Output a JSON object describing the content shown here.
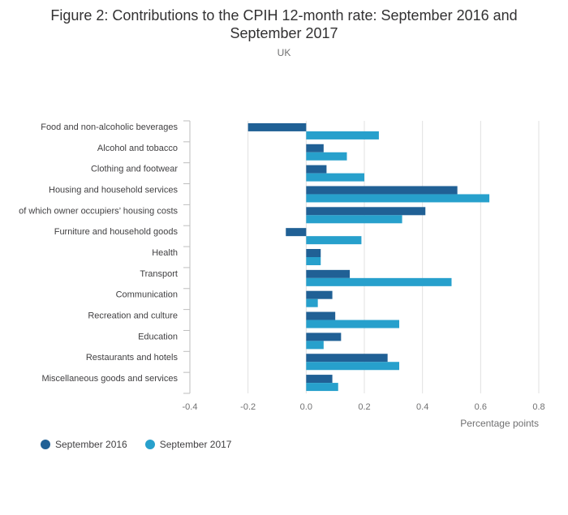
{
  "title": "Figure 2: Contributions to the CPIH 12-month rate: September 2016 and September 2017",
  "subtitle": "UK",
  "colors": {
    "series1": "#206095",
    "series2": "#27a0cc",
    "grid": "#e0e0e0",
    "axis": "#bebebe"
  },
  "chart_data": {
    "type": "bar",
    "orientation": "horizontal",
    "categories": [
      "Food and non-alcoholic beverages",
      "Alcohol and tobacco",
      "Clothing and footwear",
      "Housing and household services",
      "of which owner occupiers’ housing costs",
      "Furniture and household goods",
      "Health",
      "Transport",
      "Communication",
      "Recreation and culture",
      "Education",
      "Restaurants and hotels",
      "Miscellaneous goods and services"
    ],
    "series": [
      {
        "name": "September 2016",
        "values": [
          -0.2,
          0.06,
          0.07,
          0.52,
          0.41,
          -0.07,
          0.05,
          0.15,
          0.09,
          0.1,
          0.12,
          0.28,
          0.09
        ]
      },
      {
        "name": "September 2017",
        "values": [
          0.25,
          0.14,
          0.2,
          0.63,
          0.33,
          0.19,
          0.05,
          0.5,
          0.04,
          0.32,
          0.06,
          0.32,
          0.11
        ]
      }
    ],
    "xlim": [
      -0.4,
      0.8
    ],
    "xticks": [
      "-0.4",
      "-0.2",
      "0.0",
      "0.2",
      "0.4",
      "0.6",
      "0.8"
    ],
    "xlabel": "Percentage points",
    "grid": true,
    "legend": "bottom-left"
  }
}
